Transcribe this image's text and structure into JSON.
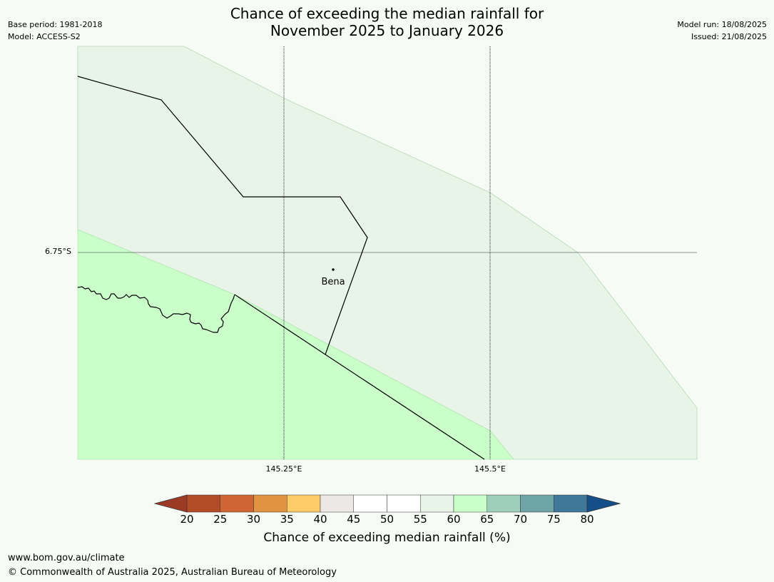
{
  "title": {
    "line1": "Chance of exceeding the median rainfall for",
    "line2": "November 2025 to January 2026"
  },
  "meta_left": {
    "base_period": "Base period: 1981-2018",
    "model": "Model: ACCESS-S2"
  },
  "meta_right": {
    "model_run": "Model run: 18/08/2025",
    "issued": "Issued: 21/08/2025"
  },
  "map": {
    "latitude_label": "6.75°S",
    "longitude_labels": [
      "145.25°E",
      "145.5°E"
    ],
    "place": {
      "name": "Bena",
      "icon": "town-dot-icon"
    },
    "regions": [
      {
        "class": "55-60",
        "color": "#e8f4e8"
      },
      {
        "class": "60-65",
        "color": "#caffca"
      }
    ],
    "colors": {
      "background": "#f6fbf6",
      "border_line": "#000000",
      "gridline": "#000000",
      "coastline": "#000000"
    }
  },
  "colorbar": {
    "title": "Chance of exceeding median rainfall (%)",
    "ticks": [
      "20",
      "25",
      "30",
      "35",
      "40",
      "45",
      "50",
      "55",
      "60",
      "65",
      "70",
      "75",
      "80"
    ],
    "under_color": "#9b3b26",
    "over_color": "#154f8a",
    "colors": [
      "#b24b28",
      "#cf6533",
      "#e19342",
      "#fdcc66",
      "#ebe8e5",
      "#ffffff",
      "#ffffff",
      "#e8f4e8",
      "#caffca",
      "#9dcfba",
      "#6fa5a6",
      "#3f7899"
    ]
  },
  "footer": {
    "url": "www.bom.gov.au/climate",
    "copyright": "© Commonwealth of Australia 2025, Australian Bureau of Meteorology"
  }
}
